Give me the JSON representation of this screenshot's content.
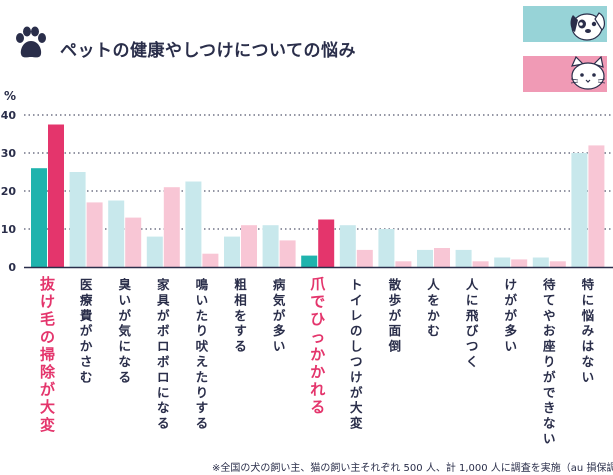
{
  "title": "ペットの健康やしつけについての悩み",
  "legend": [
    {
      "name": "犬",
      "color": "#97d3d7",
      "icon": "dog-face-icon"
    },
    {
      "name": "猫",
      "color": "#f09ab5",
      "icon": "cat-face-icon"
    }
  ],
  "chart_data": {
    "type": "bar",
    "ylabel": "%",
    "ylim": [
      0,
      40
    ],
    "yticks": [
      0,
      10,
      20,
      30,
      40
    ],
    "categories": [
      "抜け毛の掃除が大変",
      "医療費がかさむ",
      "臭いが気になる",
      "家具がボロボロになる",
      "鳴いたり吠えたりする",
      "粗相をする",
      "病気が多い",
      "爪でひっかかれる",
      "トイレのしつけが大変",
      "散歩が面倒",
      "人をかむ",
      "人に飛びつく",
      "けがが多い",
      "待てやお座りができない",
      "特に悩みはない"
    ],
    "highlighted": [
      0,
      7
    ],
    "series": [
      {
        "name": "犬",
        "values": [
          26,
          25,
          17.5,
          8,
          22.5,
          8,
          11,
          3,
          11,
          10,
          4.5,
          4.5,
          2.5,
          2.5,
          30
        ]
      },
      {
        "name": "猫",
        "values": [
          37.5,
          17,
          13,
          21,
          3.5,
          11,
          7,
          12.5,
          4.5,
          1.5,
          5,
          1.5,
          2,
          1.5,
          32
        ]
      }
    ],
    "colors": {
      "dog": "#c8e8ec",
      "cat": "#f8c6d5",
      "dog_highlight": "#1fb3ad",
      "cat_highlight": "#e4356c",
      "label": "#2a2e4a",
      "label_highlight": "#e4356c"
    }
  },
  "footnote": "※全国の犬の飼い主、猫の飼い主それぞれ 500 人、計 1,000 人に調査を実施（au 損保調べ）"
}
